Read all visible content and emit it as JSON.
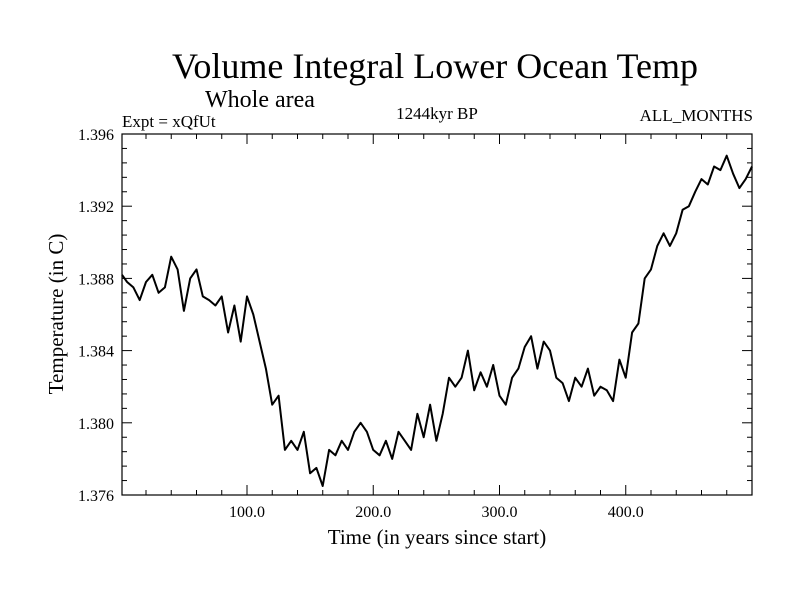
{
  "chart_data": {
    "type": "line",
    "title": "Volume Integral Lower Ocean Temp",
    "subtitle": "Whole area",
    "annotations": {
      "left": "Expt = xQfUt",
      "center": "1244kyr BP",
      "right": "ALL_MONTHS"
    },
    "xlabel": "Time (in years since start)",
    "ylabel": "Temperature (in C)",
    "xlim": [
      1,
      500
    ],
    "ylim": [
      1.376,
      1.396
    ],
    "x_ticks": [
      100,
      200,
      300,
      400
    ],
    "x_tick_labels": [
      "100.0",
      "200.0",
      "300.0",
      "400.0"
    ],
    "y_ticks": [
      1.376,
      1.38,
      1.384,
      1.388,
      1.392,
      1.396
    ],
    "y_tick_labels": [
      "1.376",
      "1.380",
      "1.384",
      "1.388",
      "1.392",
      "1.396"
    ],
    "grid": false,
    "series": [
      {
        "name": "Volume Integral Lower Ocean Temp",
        "x": [
          1,
          5,
          10,
          15,
          20,
          25,
          30,
          35,
          40,
          45,
          50,
          55,
          60,
          65,
          70,
          75,
          80,
          85,
          90,
          95,
          100,
          105,
          110,
          115,
          120,
          125,
          130,
          135,
          140,
          145,
          150,
          155,
          160,
          165,
          170,
          175,
          180,
          185,
          190,
          195,
          200,
          205,
          210,
          215,
          220,
          225,
          230,
          235,
          240,
          245,
          250,
          255,
          260,
          265,
          270,
          275,
          280,
          285,
          290,
          295,
          300,
          305,
          310,
          315,
          320,
          325,
          330,
          335,
          340,
          345,
          350,
          355,
          360,
          365,
          370,
          375,
          380,
          385,
          390,
          395,
          400,
          405,
          410,
          415,
          420,
          425,
          430,
          435,
          440,
          445,
          450,
          455,
          460,
          465,
          470,
          475,
          480,
          485,
          490,
          495,
          500
        ],
        "y": [
          1.3882,
          1.3878,
          1.3875,
          1.3868,
          1.3878,
          1.3882,
          1.3872,
          1.3875,
          1.3892,
          1.3885,
          1.3862,
          1.388,
          1.3885,
          1.387,
          1.3868,
          1.3865,
          1.387,
          1.385,
          1.3865,
          1.3845,
          1.387,
          1.386,
          1.3845,
          1.383,
          1.381,
          1.3815,
          1.3785,
          1.379,
          1.3785,
          1.3795,
          1.3772,
          1.3775,
          1.3765,
          1.3785,
          1.3782,
          1.379,
          1.3785,
          1.3795,
          1.38,
          1.3795,
          1.3785,
          1.3782,
          1.379,
          1.378,
          1.3795,
          1.379,
          1.3785,
          1.3805,
          1.3792,
          1.381,
          1.379,
          1.3805,
          1.3825,
          1.382,
          1.3825,
          1.384,
          1.3818,
          1.3828,
          1.382,
          1.3832,
          1.3815,
          1.381,
          1.3825,
          1.383,
          1.3842,
          1.3848,
          1.383,
          1.3845,
          1.384,
          1.3825,
          1.3822,
          1.3812,
          1.3825,
          1.382,
          1.383,
          1.3815,
          1.382,
          1.3818,
          1.3812,
          1.3835,
          1.3825,
          1.385,
          1.3855,
          1.388,
          1.3885,
          1.3898,
          1.3905,
          1.3898,
          1.3905,
          1.3918,
          1.392,
          1.3928,
          1.3935,
          1.3932,
          1.3942,
          1.394,
          1.3948,
          1.3938,
          1.393,
          1.3935,
          1.3942
        ]
      }
    ]
  }
}
